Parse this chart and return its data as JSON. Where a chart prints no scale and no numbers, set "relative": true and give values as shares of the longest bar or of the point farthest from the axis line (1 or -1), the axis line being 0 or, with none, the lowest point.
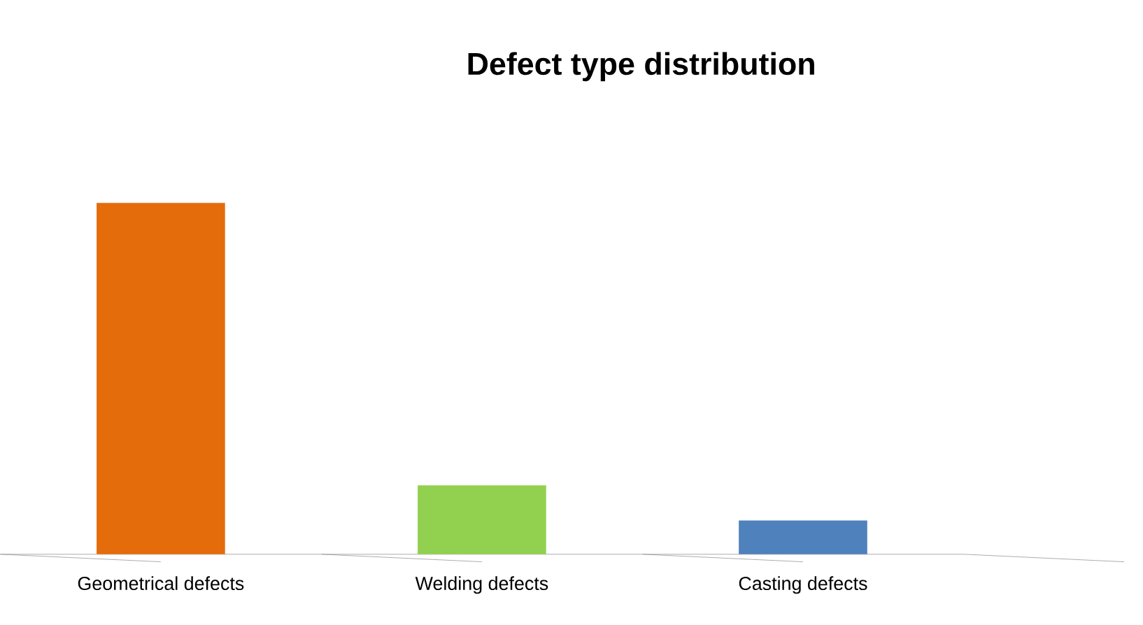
{
  "chart_data": {
    "type": "bar",
    "title": "Defect type distribution",
    "relative": true,
    "categories": [
      "Geometrical defects",
      "Welding defects",
      "Casting defects"
    ],
    "values": [
      1,
      0.196,
      0.096
    ],
    "colors": [
      "#e46c0a",
      "#92d050",
      "#4f81bd"
    ]
  }
}
